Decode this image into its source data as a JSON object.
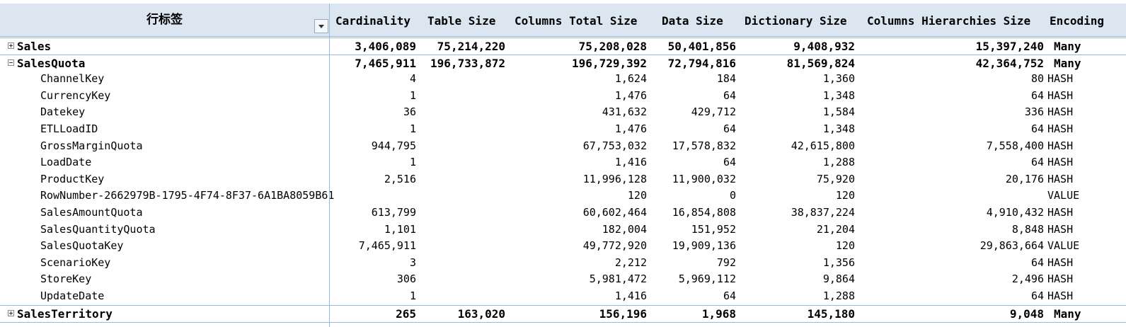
{
  "header": {
    "row_label": "行标签",
    "columns": [
      "Cardinality",
      "Table Size",
      "Columns Total Size",
      "Data Size",
      "Dictionary Size",
      "Columns Hierarchies Size",
      "Encoding"
    ]
  },
  "rows": [
    {
      "type": "table",
      "expander": "plus",
      "label": "Sales",
      "values": [
        "3,406,089",
        "75,214,220",
        "75,208,028",
        "50,401,856",
        "9,408,932",
        "15,397,240"
      ],
      "encoding": "Many"
    },
    {
      "type": "table",
      "expander": "minus",
      "label": "SalesQuota",
      "values": [
        "7,465,911",
        "196,733,872",
        "196,729,392",
        "72,794,816",
        "81,569,824",
        "42,364,752"
      ],
      "encoding": "Many"
    },
    {
      "type": "col",
      "label": "ChannelKey",
      "values": [
        "4",
        "",
        "1,624",
        "184",
        "1,360",
        "80"
      ],
      "encoding": "HASH"
    },
    {
      "type": "col",
      "label": "CurrencyKey",
      "values": [
        "1",
        "",
        "1,476",
        "64",
        "1,348",
        "64"
      ],
      "encoding": "HASH"
    },
    {
      "type": "col",
      "label": "Datekey",
      "values": [
        "36",
        "",
        "431,632",
        "429,712",
        "1,584",
        "336"
      ],
      "encoding": "HASH"
    },
    {
      "type": "col",
      "label": "ETLLoadID",
      "values": [
        "1",
        "",
        "1,476",
        "64",
        "1,348",
        "64"
      ],
      "encoding": "HASH"
    },
    {
      "type": "col",
      "label": "GrossMarginQuota",
      "values": [
        "944,795",
        "",
        "67,753,032",
        "17,578,832",
        "42,615,800",
        "7,558,400"
      ],
      "encoding": "HASH"
    },
    {
      "type": "col",
      "label": "LoadDate",
      "values": [
        "1",
        "",
        "1,416",
        "64",
        "1,288",
        "64"
      ],
      "encoding": "HASH"
    },
    {
      "type": "col",
      "label": "ProductKey",
      "values": [
        "2,516",
        "",
        "11,996,128",
        "11,900,032",
        "75,920",
        "20,176"
      ],
      "encoding": "HASH"
    },
    {
      "type": "col",
      "label": "RowNumber-2662979B-1795-4F74-8F37-6A1BA8059B61",
      "values": [
        "",
        "",
        "120",
        "0",
        "120",
        ""
      ],
      "encoding": "VALUE"
    },
    {
      "type": "col",
      "label": "SalesAmountQuota",
      "values": [
        "613,799",
        "",
        "60,602,464",
        "16,854,808",
        "38,837,224",
        "4,910,432"
      ],
      "encoding": "HASH"
    },
    {
      "type": "col",
      "label": "SalesQuantityQuota",
      "values": [
        "1,101",
        "",
        "182,004",
        "151,952",
        "21,204",
        "8,848"
      ],
      "encoding": "HASH"
    },
    {
      "type": "col",
      "label": "SalesQuotaKey",
      "values": [
        "7,465,911",
        "",
        "49,772,920",
        "19,909,136",
        "120",
        "29,863,664"
      ],
      "encoding": "VALUE"
    },
    {
      "type": "col",
      "label": "ScenarioKey",
      "values": [
        "3",
        "",
        "2,212",
        "792",
        "1,356",
        "64"
      ],
      "encoding": "HASH"
    },
    {
      "type": "col",
      "label": "StoreKey",
      "values": [
        "306",
        "",
        "5,981,472",
        "5,969,112",
        "9,864",
        "2,496"
      ],
      "encoding": "HASH"
    },
    {
      "type": "col",
      "label": "UpdateDate",
      "values": [
        "1",
        "",
        "1,416",
        "64",
        "1,288",
        "64"
      ],
      "encoding": "HASH"
    },
    {
      "type": "table",
      "expander": "plus",
      "label": "SalesTerritory",
      "values": [
        "265",
        "163,020",
        "156,196",
        "1,968",
        "145,180",
        "9,048"
      ],
      "encoding": "Many"
    }
  ]
}
